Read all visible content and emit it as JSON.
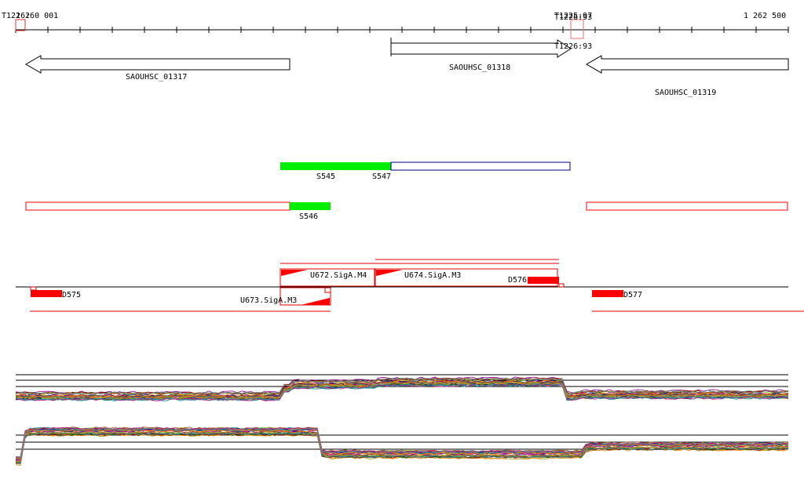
{
  "ruler": {
    "start_label": "1 260 001",
    "end_label": "1 262 500",
    "tss_left": "T1226:",
    "tss_right_a": "T1225:97",
    "tss_right_b": "T1226:93",
    "tss_mid": "T1226:93"
  },
  "genes": [
    {
      "name": "SAOUHSC_01317",
      "strand": "-"
    },
    {
      "name": "SAOUHSC_01318",
      "strand": "+"
    },
    {
      "name": "SAOUHSC_01319",
      "strand": "-"
    }
  ],
  "segments": {
    "plus": [
      "S545",
      "S547"
    ],
    "minus": [
      "S546"
    ]
  },
  "utr_features": {
    "upper": [
      "U672.SigA.M4",
      "U674.SigA.M3",
      "D576"
    ],
    "lower": [
      "D575",
      "U673.SigA.M3",
      "D577"
    ]
  },
  "colors": {
    "segment_fill": "#00ee00",
    "feature_red": "#ff0000",
    "segment_outline_blue": "#000080"
  }
}
